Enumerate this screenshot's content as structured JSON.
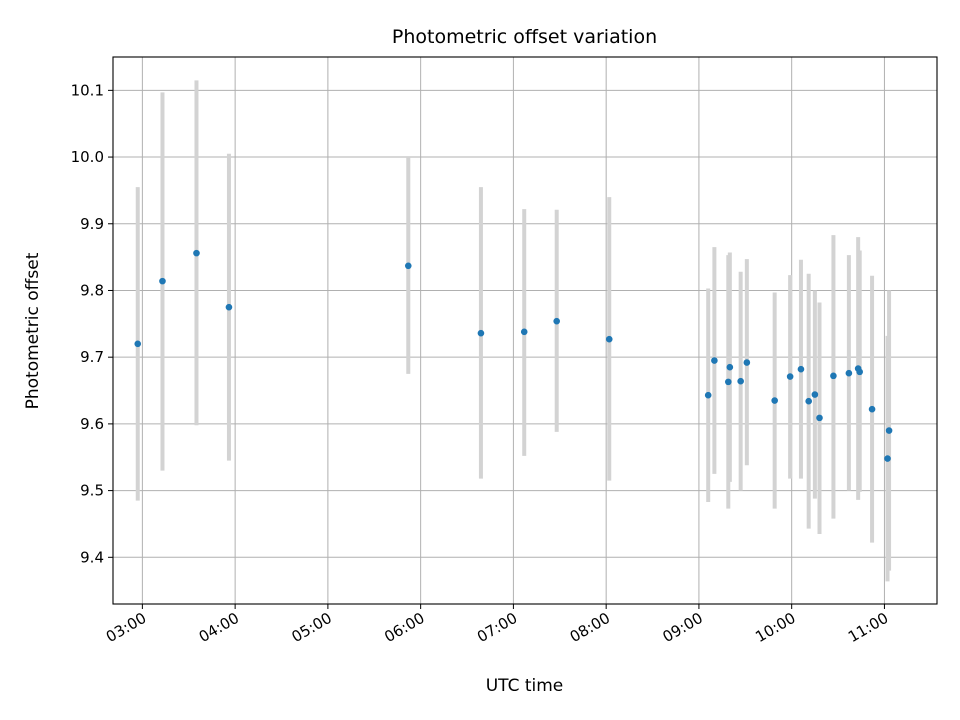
{
  "chart_data": {
    "type": "scatter",
    "title": "Photometric offset variation",
    "xlabel": "UTC time",
    "ylabel": "Photometric offset",
    "xlim": [
      "02:41",
      "11:34"
    ],
    "ylim": [
      9.33,
      10.15
    ],
    "grid": true,
    "x_ticks": [
      "03:00",
      "04:00",
      "05:00",
      "06:00",
      "07:00",
      "08:00",
      "09:00",
      "10:00",
      "11:00"
    ],
    "y_ticks": [
      "9.4",
      "9.5",
      "9.6",
      "9.7",
      "9.8",
      "9.9",
      "10.0",
      "10.1"
    ],
    "colors": {
      "point": "#1f77b4",
      "errorbar": "#d3d3d3",
      "grid": "#b0b0b0"
    },
    "series": [
      {
        "points": [
          {
            "x": "02:57",
            "y": 9.72,
            "err": [
              9.485,
              9.955
            ]
          },
          {
            "x": "03:13",
            "y": 9.814,
            "err": [
              9.53,
              10.097
            ]
          },
          {
            "x": "03:35",
            "y": 9.856,
            "err": [
              9.598,
              10.115
            ]
          },
          {
            "x": "03:56",
            "y": 9.775,
            "err": [
              9.545,
              10.005
            ]
          },
          {
            "x": "05:52",
            "y": 9.837,
            "err": [
              9.675,
              10.0
            ]
          },
          {
            "x": "06:39",
            "y": 9.736,
            "err": [
              9.518,
              9.955
            ]
          },
          {
            "x": "07:07",
            "y": 9.738,
            "err": [
              9.552,
              9.922
            ]
          },
          {
            "x": "07:28",
            "y": 9.754,
            "err": [
              9.588,
              9.921
            ]
          },
          {
            "x": "08:02",
            "y": 9.727,
            "err": [
              9.515,
              9.94
            ]
          },
          {
            "x": "09:06",
            "y": 9.643,
            "err": [
              9.483,
              9.803
            ]
          },
          {
            "x": "09:10",
            "y": 9.695,
            "err": [
              9.525,
              9.865
            ]
          },
          {
            "x": "09:19",
            "y": 9.663,
            "err": [
              9.473,
              9.853
            ]
          },
          {
            "x": "09:20",
            "y": 9.685,
            "err": [
              9.513,
              9.857
            ]
          },
          {
            "x": "09:27",
            "y": 9.664,
            "err": [
              9.5,
              9.828
            ]
          },
          {
            "x": "09:31",
            "y": 9.692,
            "err": [
              9.538,
              9.847
            ]
          },
          {
            "x": "09:49",
            "y": 9.635,
            "err": [
              9.473,
              9.797
            ]
          },
          {
            "x": "09:59",
            "y": 9.671,
            "err": [
              9.518,
              9.823
            ]
          },
          {
            "x": "10:06",
            "y": 9.682,
            "err": [
              9.518,
              9.846
            ]
          },
          {
            "x": "10:11",
            "y": 9.634,
            "err": [
              9.443,
              9.825
            ]
          },
          {
            "x": "10:15",
            "y": 9.644,
            "err": [
              9.488,
              9.8
            ]
          },
          {
            "x": "10:18",
            "y": 9.609,
            "err": [
              9.435,
              9.782
            ]
          },
          {
            "x": "10:27",
            "y": 9.672,
            "err": [
              9.458,
              9.883
            ]
          },
          {
            "x": "10:37",
            "y": 9.676,
            "err": [
              9.5,
              9.853
            ]
          },
          {
            "x": "10:43",
            "y": 9.683,
            "err": [
              9.486,
              9.88
            ]
          },
          {
            "x": "10:44",
            "y": 9.678,
            "err": [
              9.498,
              9.86
            ]
          },
          {
            "x": "10:52",
            "y": 9.622,
            "err": [
              9.422,
              9.822
            ]
          },
          {
            "x": "11:02",
            "y": 9.548,
            "err": [
              9.364,
              9.732
            ]
          },
          {
            "x": "11:03",
            "y": 9.59,
            "err": [
              9.38,
              9.8
            ]
          }
        ]
      }
    ]
  }
}
